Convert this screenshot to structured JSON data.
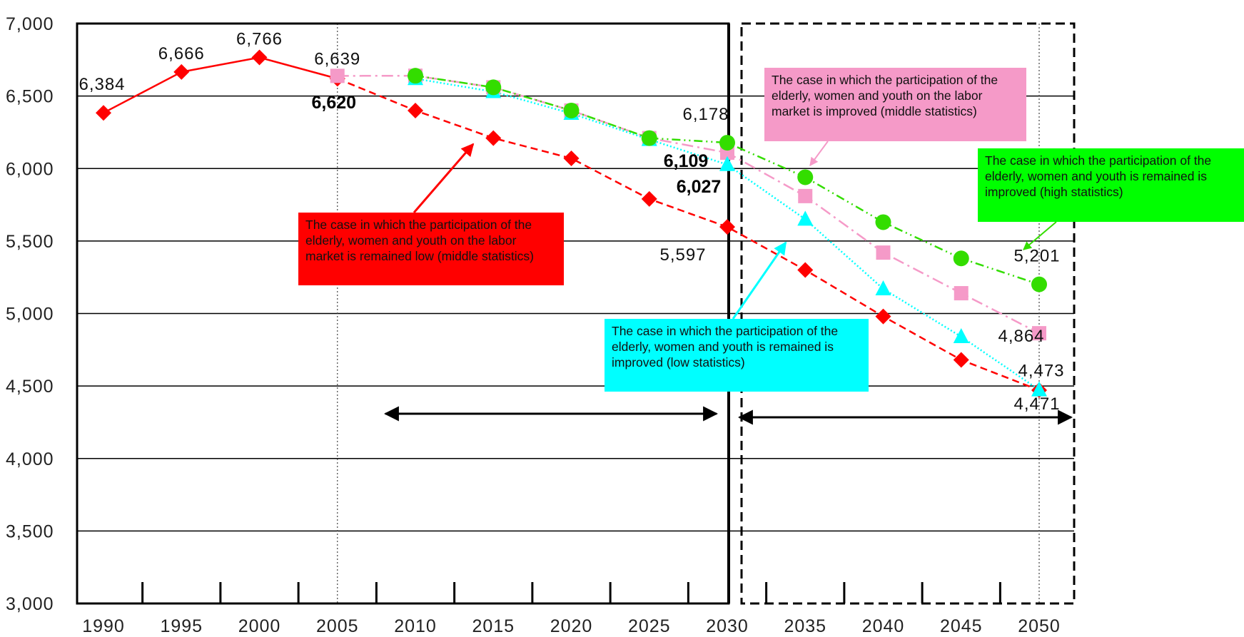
{
  "chart_data": {
    "type": "line",
    "xlim": [
      1990,
      2050
    ],
    "ylim": [
      3000,
      7000
    ],
    "grid": true,
    "x_ticks": [
      "1990",
      "1995",
      "2000",
      "2005",
      "2010",
      "2015",
      "2020",
      "2025",
      "2030",
      "2035",
      "2040",
      "2045",
      "2050"
    ],
    "y_ticks": [
      "3,000",
      "3,500",
      "4,000",
      "4,500",
      "5,000",
      "5,500",
      "6,000",
      "6,500",
      "7,000"
    ],
    "series": [
      {
        "key": "actual",
        "color": "#ff0000",
        "marker": "diamond",
        "line": "solid",
        "points": [
          [
            1990,
            6384
          ],
          [
            1995,
            6666
          ],
          [
            2000,
            6766
          ],
          [
            2005,
            6620
          ]
        ]
      },
      {
        "key": "low_remained",
        "color": "#ff0000",
        "marker": "diamond",
        "line": "dashed",
        "points": [
          [
            2005,
            6620
          ],
          [
            2010,
            6400
          ],
          [
            2015,
            6210
          ],
          [
            2020,
            6070
          ],
          [
            2025,
            5790
          ],
          [
            2030,
            5597
          ],
          [
            2035,
            5300
          ],
          [
            2040,
            4980
          ],
          [
            2045,
            4680
          ],
          [
            2050,
            4471
          ]
        ]
      },
      {
        "key": "middle_improved",
        "color": "#f59ac8",
        "marker": "square",
        "line": "dashdot",
        "points": [
          [
            2005,
            6639
          ],
          [
            2010,
            6640
          ],
          [
            2015,
            6560
          ],
          [
            2020,
            6400
          ],
          [
            2025,
            6210
          ],
          [
            2030,
            6109
          ],
          [
            2035,
            5810
          ],
          [
            2040,
            5420
          ],
          [
            2045,
            5140
          ],
          [
            2050,
            4864
          ]
        ]
      },
      {
        "key": "low_improved",
        "color": "#00ffff",
        "marker": "triangle",
        "line": "dotted",
        "points": [
          [
            2010,
            6620
          ],
          [
            2015,
            6530
          ],
          [
            2020,
            6380
          ],
          [
            2025,
            6200
          ],
          [
            2030,
            6027
          ],
          [
            2035,
            5650
          ],
          [
            2040,
            5170
          ],
          [
            2045,
            4840
          ],
          [
            2050,
            4473
          ]
        ]
      },
      {
        "key": "high_improved",
        "color": "#33dd00",
        "marker": "circle",
        "line": "dashdotdot",
        "points": [
          [
            2010,
            6640
          ],
          [
            2015,
            6560
          ],
          [
            2020,
            6400
          ],
          [
            2025,
            6210
          ],
          [
            2030,
            6178
          ],
          [
            2035,
            5940
          ],
          [
            2040,
            5630
          ],
          [
            2045,
            5380
          ],
          [
            2050,
            5201
          ]
        ]
      }
    ],
    "data_labels": [
      {
        "text": "6,384",
        "x": 1990,
        "y": 6384,
        "style": "normal"
      },
      {
        "text": "6,666",
        "x": 1995,
        "y": 6666,
        "style": "normal"
      },
      {
        "text": "6,766",
        "x": 2000,
        "y": 6766,
        "style": "normal"
      },
      {
        "text": "6,639",
        "x": 2005,
        "y": 6639,
        "style": "normal"
      },
      {
        "text": "6,620",
        "x": 2005,
        "y": 6620,
        "style": "bold"
      },
      {
        "text": "6,178",
        "x": 2030,
        "y": 6178,
        "style": "normal"
      },
      {
        "text": "6,109",
        "x": 2030,
        "y": 6109,
        "style": "bold"
      },
      {
        "text": "6,027",
        "x": 2030,
        "y": 6027,
        "style": "bold"
      },
      {
        "text": "5,597",
        "x": 2030,
        "y": 5597,
        "style": "normal"
      },
      {
        "text": "5,201",
        "x": 2050,
        "y": 5201,
        "style": "normal"
      },
      {
        "text": "4,864",
        "x": 2050,
        "y": 4864,
        "style": "normal"
      },
      {
        "text": "4,473",
        "x": 2050,
        "y": 4473,
        "style": "normal"
      },
      {
        "text": "4,471",
        "x": 2050,
        "y": 4471,
        "style": "normal"
      }
    ],
    "annotations": {
      "red": "The case in which the participation of the elderly, women and youth on the labor market is remained low (middle statistics)",
      "pink": "The case in which the participation of the elderly, women and youth on the labor market is improved (middle statistics)",
      "green": "The case in which the participation of the elderly, women and youth is remained is improved (high statistics)",
      "cyan": "The case in which the participation of the elderly, women and youth is remained is improved (low statistics)"
    }
  }
}
